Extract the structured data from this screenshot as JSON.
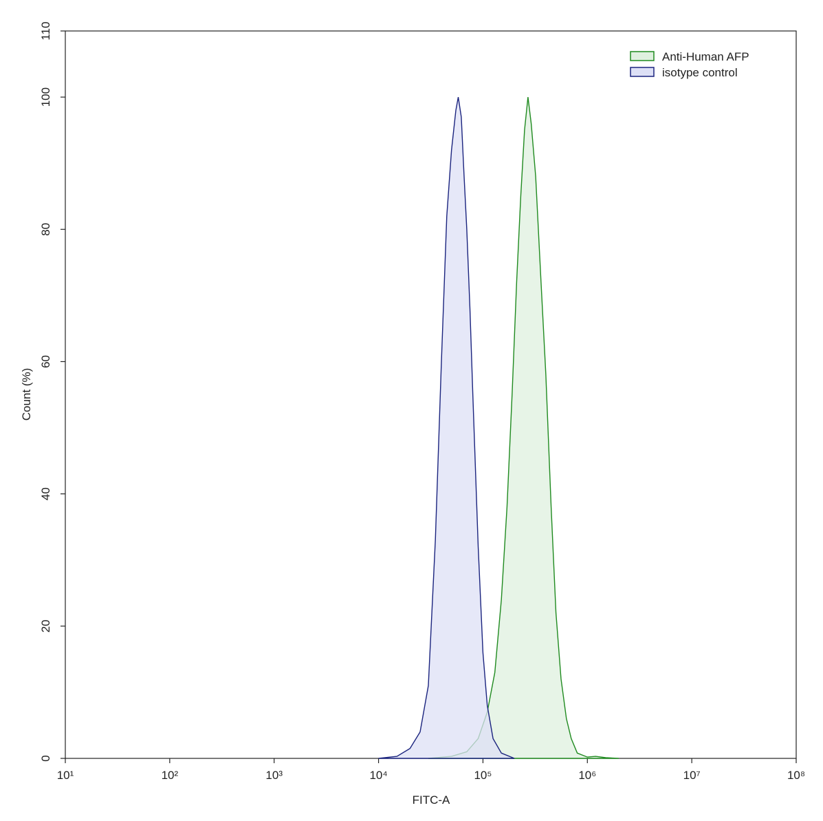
{
  "chart_data": {
    "type": "area",
    "x_label": "FITC-A",
    "y_label": "Count  (%)",
    "xscale": "log",
    "xlim": [
      10,
      100000000
    ],
    "xticks": [
      {
        "value": 10,
        "label": "10¹"
      },
      {
        "value": 100,
        "label": "10²"
      },
      {
        "value": 1000,
        "label": "10³"
      },
      {
        "value": 10000,
        "label": "10⁴"
      },
      {
        "value": 100000,
        "label": "10⁵"
      },
      {
        "value": 1000000,
        "label": "10⁶"
      },
      {
        "value": 10000000,
        "label": "10⁷"
      },
      {
        "value": 100000000,
        "label": "10⁸"
      }
    ],
    "ylim": [
      0,
      110
    ],
    "yticks": [
      0,
      20,
      40,
      60,
      80,
      100,
      110
    ],
    "legend": "top-right",
    "series": [
      {
        "name": "Anti-Human AFP",
        "color": "#1f8a1f",
        "fill": "#dff0df",
        "x": [
          30000,
          50000,
          70000,
          90000,
          110000,
          130000,
          150000,
          170000,
          190000,
          210000,
          230000,
          250000,
          270000,
          290000,
          320000,
          360000,
          400000,
          450000,
          500000,
          560000,
          630000,
          700000,
          800000,
          1000000,
          1200000,
          1500000,
          2000000
        ],
        "values": [
          0,
          0.3,
          1,
          3,
          7,
          13,
          24,
          38,
          55,
          72,
          85,
          95,
          100,
          96,
          88,
          72,
          58,
          38,
          22,
          12,
          6,
          3,
          0.8,
          0.2,
          0.3,
          0.1,
          0
        ]
      },
      {
        "name": "isotype control",
        "color": "#1a237e",
        "fill": "#dde0f6",
        "x": [
          10000,
          15000,
          20000,
          25000,
          30000,
          35000,
          40000,
          45000,
          50000,
          55000,
          58000,
          62000,
          66000,
          70000,
          75000,
          80000,
          90000,
          100000,
          110000,
          125000,
          150000,
          200000
        ],
        "values": [
          0,
          0.3,
          1.5,
          4,
          11,
          33,
          60,
          82,
          92,
          98,
          100,
          97,
          88,
          80,
          68,
          55,
          32,
          16,
          8,
          3,
          0.8,
          0
        ]
      }
    ]
  }
}
